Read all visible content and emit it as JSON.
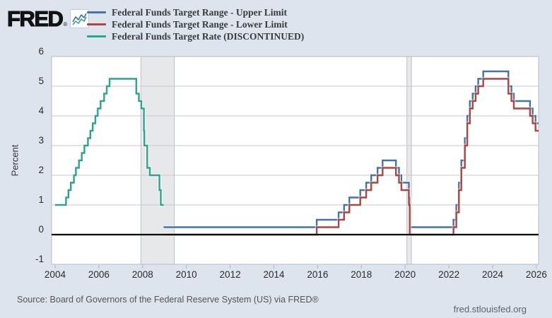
{
  "header": {
    "logo_text": "FRED",
    "registered_mark": "®"
  },
  "chart_data": {
    "type": "line",
    "step": true,
    "title": "",
    "xlabel": "",
    "ylabel": "Percent",
    "xlim": [
      2003.84,
      2026.1
    ],
    "ylim": [
      -1,
      6
    ],
    "x_ticks": [
      2004,
      2006,
      2008,
      2010,
      2012,
      2014,
      2016,
      2018,
      2020,
      2022,
      2024,
      2026
    ],
    "y_ticks": [
      -1,
      0,
      1,
      2,
      3,
      4,
      5,
      6
    ],
    "zero_line": 0,
    "grid": true,
    "legend_position": "top",
    "recession_fill": "rgba(103,115,125,0.16)",
    "recession_edge": "rgba(90,100,110,0.35)",
    "recession_bands": [
      {
        "start": 2007.92,
        "end": 2009.45
      },
      {
        "start": 2020.08,
        "end": 2020.29
      }
    ],
    "series": [
      {
        "name": "Federal Funds Target Range - Upper Limit",
        "color": "#4572a7",
        "draw_order": 2,
        "end": 2026.1,
        "points": [
          [
            2008.96,
            0.25
          ],
          [
            2015.96,
            0.5
          ],
          [
            2016.96,
            0.75
          ],
          [
            2017.21,
            1.0
          ],
          [
            2017.45,
            1.25
          ],
          [
            2017.95,
            1.5
          ],
          [
            2018.22,
            1.75
          ],
          [
            2018.45,
            2.0
          ],
          [
            2018.74,
            2.25
          ],
          [
            2018.97,
            2.5
          ],
          [
            2019.58,
            2.25
          ],
          [
            2019.72,
            2.0
          ],
          [
            2019.83,
            1.75
          ],
          [
            2020.17,
            1.25
          ],
          [
            2020.21,
            0.25
          ],
          [
            2022.21,
            0.5
          ],
          [
            2022.34,
            1.0
          ],
          [
            2022.46,
            1.75
          ],
          [
            2022.57,
            2.5
          ],
          [
            2022.73,
            3.25
          ],
          [
            2022.84,
            4.0
          ],
          [
            2022.96,
            4.5
          ],
          [
            2023.09,
            4.75
          ],
          [
            2023.22,
            5.0
          ],
          [
            2023.34,
            5.25
          ],
          [
            2023.57,
            5.5
          ],
          [
            2024.72,
            5.0
          ],
          [
            2024.86,
            4.75
          ],
          [
            2024.97,
            4.5
          ],
          [
            2025.71,
            4.25
          ],
          [
            2025.83,
            4.0
          ],
          [
            2025.96,
            3.75
          ]
        ]
      },
      {
        "name": "Federal Funds Target Range - Lower Limit",
        "color": "#aa4643",
        "draw_order": 3,
        "end": 2026.1,
        "points": [
          [
            2008.96,
            0.0
          ],
          [
            2015.96,
            0.25
          ],
          [
            2016.96,
            0.5
          ],
          [
            2017.21,
            0.75
          ],
          [
            2017.45,
            1.0
          ],
          [
            2017.95,
            1.25
          ],
          [
            2018.22,
            1.5
          ],
          [
            2018.45,
            1.75
          ],
          [
            2018.74,
            2.0
          ],
          [
            2018.97,
            2.25
          ],
          [
            2019.58,
            2.0
          ],
          [
            2019.72,
            1.75
          ],
          [
            2019.83,
            1.5
          ],
          [
            2020.17,
            1.0
          ],
          [
            2020.21,
            0.0
          ],
          [
            2022.21,
            0.25
          ],
          [
            2022.34,
            0.75
          ],
          [
            2022.46,
            1.5
          ],
          [
            2022.57,
            2.25
          ],
          [
            2022.73,
            3.0
          ],
          [
            2022.84,
            3.75
          ],
          [
            2022.96,
            4.25
          ],
          [
            2023.09,
            4.5
          ],
          [
            2023.22,
            4.75
          ],
          [
            2023.34,
            5.0
          ],
          [
            2023.57,
            5.25
          ],
          [
            2024.72,
            4.75
          ],
          [
            2024.86,
            4.5
          ],
          [
            2024.97,
            4.25
          ],
          [
            2025.71,
            4.0
          ],
          [
            2025.83,
            3.75
          ],
          [
            2025.96,
            3.5
          ]
        ]
      },
      {
        "name": "Federal Funds Target Rate (DISCONTINUED)",
        "color": "#2da390",
        "draw_order": 1,
        "end": 2008.96,
        "points": [
          [
            2004.0,
            1.0
          ],
          [
            2004.5,
            1.25
          ],
          [
            2004.61,
            1.5
          ],
          [
            2004.72,
            1.75
          ],
          [
            2004.86,
            2.0
          ],
          [
            2004.95,
            2.25
          ],
          [
            2005.09,
            2.5
          ],
          [
            2005.22,
            2.75
          ],
          [
            2005.34,
            3.0
          ],
          [
            2005.5,
            3.25
          ],
          [
            2005.61,
            3.5
          ],
          [
            2005.72,
            3.75
          ],
          [
            2005.84,
            4.0
          ],
          [
            2005.95,
            4.25
          ],
          [
            2006.08,
            4.5
          ],
          [
            2006.24,
            4.75
          ],
          [
            2006.36,
            5.0
          ],
          [
            2006.49,
            5.25
          ],
          [
            2007.71,
            4.75
          ],
          [
            2007.83,
            4.5
          ],
          [
            2007.94,
            4.25
          ],
          [
            2008.06,
            3.5
          ],
          [
            2008.08,
            3.0
          ],
          [
            2008.21,
            2.25
          ],
          [
            2008.33,
            2.0
          ],
          [
            2008.77,
            1.5
          ],
          [
            2008.83,
            1.0
          ]
        ]
      }
    ]
  },
  "footer": {
    "source": "Source: Board of Governors of the Federal Reserve System (US) via FRED®",
    "site": "fred.stlouisfed.org"
  }
}
